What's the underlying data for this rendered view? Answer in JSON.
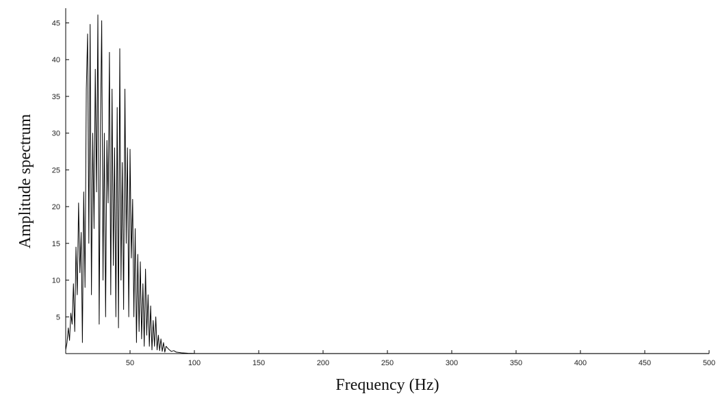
{
  "chart_data": {
    "type": "line",
    "title": "",
    "xlabel": "Frequency (Hz)",
    "ylabel": "Amplitude spectrum",
    "xlim": [
      0,
      500
    ],
    "ylim": [
      0,
      47
    ],
    "grid": false,
    "legend": "none",
    "line_color": "#000000",
    "x_ticks": [
      50,
      100,
      150,
      200,
      250,
      300,
      350,
      400,
      450,
      500
    ],
    "y_ticks": [
      5,
      10,
      15,
      20,
      25,
      30,
      35,
      40,
      45
    ],
    "series": [
      {
        "x": [
          0,
          1,
          2,
          3,
          4,
          5,
          6,
          7,
          8,
          9,
          10,
          11,
          12,
          13,
          14,
          15,
          16,
          17,
          18,
          19,
          20,
          21,
          22,
          23,
          24,
          25,
          26,
          27,
          28,
          29,
          30,
          31,
          32,
          33,
          34,
          35,
          36,
          37,
          38,
          39,
          40,
          41,
          42,
          43,
          44,
          45,
          46,
          47,
          48,
          49,
          50,
          51,
          52,
          53,
          54,
          55,
          56,
          57,
          58,
          59,
          60,
          61,
          62,
          63,
          64,
          65,
          66,
          67,
          68,
          69,
          70,
          71,
          72,
          73,
          74,
          75,
          76,
          77,
          78,
          80,
          82,
          84,
          86,
          88,
          90,
          95,
          100,
          150,
          200,
          250,
          300,
          350,
          400,
          450,
          500
        ],
        "y": [
          0.5,
          1.5,
          3.5,
          1.8,
          5.5,
          4.0,
          9.5,
          3.0,
          14.5,
          8.0,
          20.5,
          11.0,
          16.5,
          1.5,
          22.0,
          9.0,
          36.0,
          43.5,
          15.0,
          44.8,
          8.0,
          30.0,
          17.0,
          38.7,
          22.0,
          46.1,
          4.0,
          31.0,
          45.3,
          10.0,
          30.0,
          5.0,
          29.0,
          20.5,
          41.0,
          8.0,
          36.0,
          12.0,
          28.0,
          5.0,
          33.5,
          3.5,
          41.5,
          10.0,
          26.0,
          6.0,
          36.0,
          15.0,
          28.0,
          5.0,
          27.8,
          13.0,
          21.0,
          5.0,
          17.0,
          1.5,
          13.5,
          3.0,
          12.5,
          2.0,
          9.5,
          1.0,
          11.5,
          2.5,
          8.0,
          1.0,
          6.5,
          0.5,
          4.5,
          1.0,
          5.0,
          0.5,
          2.5,
          0.4,
          2.0,
          0.3,
          1.5,
          0.2,
          1.0,
          0.6,
          0.3,
          0.4,
          0.2,
          0.15,
          0.1,
          0.05,
          0.02,
          0.01,
          0.01,
          0.01,
          0.01,
          0.01,
          0.01,
          0.01,
          0.01
        ]
      }
    ]
  }
}
